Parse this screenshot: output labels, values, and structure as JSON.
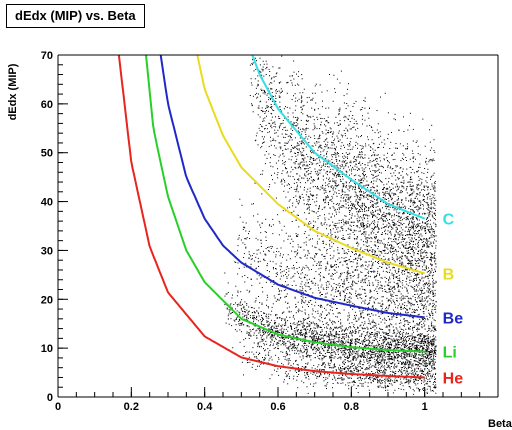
{
  "chart_data": {
    "type": "scatter",
    "title": "dEdx (MIP) vs. Beta",
    "xlabel": "Beta",
    "ylabel": "dEdx (MIP)",
    "xlim": [
      0,
      1.2
    ],
    "ylim": [
      0,
      70
    ],
    "x_ticks": [
      "0",
      "0.2",
      "0.4",
      "0.6",
      "0.8",
      "1"
    ],
    "y_ticks": [
      "0",
      "10",
      "20",
      "30",
      "40",
      "50",
      "60",
      "70"
    ],
    "grid": false,
    "series": [
      {
        "name": "He",
        "color": "#e8251c",
        "x": [
          0.166,
          0.2,
          0.25,
          0.3,
          0.4,
          0.5,
          0.6,
          0.7,
          0.8,
          0.9,
          1.0
        ],
        "y": [
          70,
          48,
          30.8,
          21.4,
          12.4,
          8.1,
          6.3,
          5.3,
          4.7,
          4.3,
          4.0
        ]
      },
      {
        "name": "Li",
        "color": "#27d028",
        "x": [
          0.24,
          0.26,
          0.3,
          0.35,
          0.4,
          0.5,
          0.6,
          0.7,
          0.8,
          0.9,
          1.0
        ],
        "y": [
          70,
          55,
          41,
          30,
          23.5,
          16,
          12.8,
          11.2,
          10.2,
          9.6,
          9.3
        ]
      },
      {
        "name": "Be",
        "color": "#1f28c8",
        "x": [
          0.28,
          0.3,
          0.35,
          0.4,
          0.45,
          0.5,
          0.6,
          0.7,
          0.8,
          0.9,
          1.0
        ],
        "y": [
          70,
          60,
          45,
          36.5,
          31,
          27.5,
          23,
          20.3,
          18.7,
          17.2,
          16.3
        ]
      },
      {
        "name": "B",
        "color": "#eadb1d",
        "x": [
          0.38,
          0.4,
          0.45,
          0.5,
          0.6,
          0.7,
          0.8,
          0.9,
          1.0
        ],
        "y": [
          70,
          63,
          53.5,
          47,
          39.5,
          34,
          30.5,
          27.5,
          25.3
        ]
      },
      {
        "name": "C",
        "color": "#34dfe6",
        "x": [
          0.53,
          0.55,
          0.6,
          0.7,
          0.8,
          0.9,
          1.0
        ],
        "y": [
          70,
          66,
          59,
          50,
          44.5,
          39.5,
          36.5
        ]
      }
    ],
    "scatter_clusters": [
      {
        "x_range": [
          0.45,
          1.03
        ],
        "y_center_offset": 0,
        "follows": "Li",
        "spread": 2.2,
        "count": 2200
      },
      {
        "x_range": [
          0.48,
          1.03
        ],
        "y_center_offset": 2,
        "follows": "Be",
        "spread": 6.5,
        "count": 1600
      },
      {
        "x_range": [
          0.52,
          1.03
        ],
        "y_center_offset": -3,
        "follows": "C",
        "spread": 8.5,
        "count": 3400
      },
      {
        "x_range": [
          0.5,
          1.03
        ],
        "y_center_offset": 0,
        "follows": "He",
        "spread": 1.5,
        "count": 700
      }
    ]
  }
}
